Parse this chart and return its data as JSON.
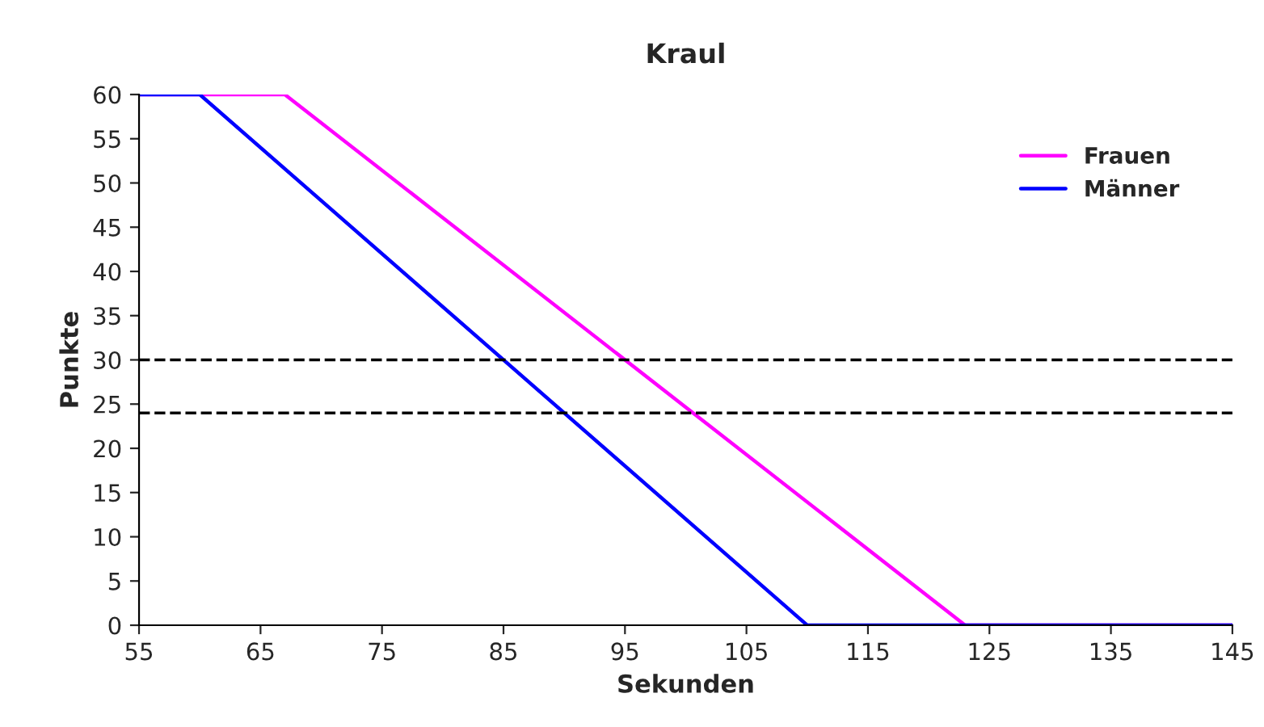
{
  "chart_data": {
    "type": "line",
    "title": "Kraul",
    "xlabel": "Sekunden",
    "ylabel": "Punkte",
    "series": [
      {
        "name": "Frauen",
        "color": "#ff00ff",
        "x": [
          55,
          67,
          123,
          145
        ],
        "values": [
          60,
          60,
          0,
          0
        ]
      },
      {
        "name": "Männer",
        "color": "#0000ff",
        "x": [
          55,
          60,
          110,
          145
        ],
        "values": [
          60,
          60,
          0,
          0
        ]
      }
    ],
    "xlim": [
      55,
      145
    ],
    "xticks": [
      55,
      65,
      75,
      85,
      95,
      105,
      115,
      125,
      135,
      145
    ],
    "ylim": [
      0,
      60
    ],
    "yticks": [
      0,
      5,
      10,
      15,
      20,
      25,
      30,
      35,
      40,
      45,
      50,
      55,
      60
    ],
    "ref_lines": [
      {
        "axis": "y",
        "value": 30,
        "color": "#000000",
        "line_style": "dashed"
      },
      {
        "axis": "y",
        "value": 24,
        "color": "#000000",
        "line_style": "dashed"
      }
    ],
    "grid": false,
    "legend": "top right",
    "marker": "none",
    "line_style": "solid"
  }
}
